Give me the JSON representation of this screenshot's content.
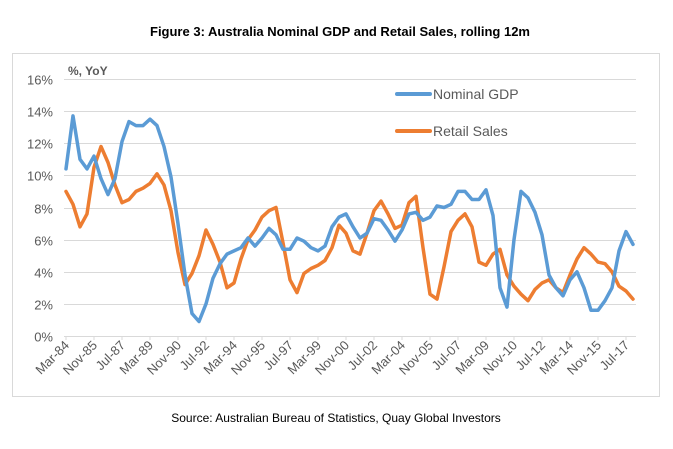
{
  "chart_data": {
    "type": "line",
    "title": "Figure 3: Australia Nominal GDP and Retail Sales, rolling 12m",
    "ylabel": "%, YoY",
    "xlabel": "",
    "source": "Source: Australian Bureau of Statistics, Quay Global Investors",
    "ylim": [
      0,
      16
    ],
    "y_ticks": [
      "0%",
      "2%",
      "4%",
      "6%",
      "8%",
      "10%",
      "12%",
      "14%",
      "16%"
    ],
    "x_ticks": [
      "Mar-84",
      "Nov-85",
      "Jul-87",
      "Mar-89",
      "Nov-90",
      "Jul-92",
      "Mar-94",
      "Nov-95",
      "Jul-97",
      "Mar-99",
      "Nov-00",
      "Jul-02",
      "Mar-04",
      "Nov-05",
      "Jul-07",
      "Mar-09",
      "Nov-10",
      "Jul-12",
      "Mar-14",
      "Nov-15",
      "Jul-17"
    ],
    "grid": "horizontal",
    "legend_position": "top-right",
    "x": [
      "1984-03",
      "1984-08",
      "1985-01",
      "1985-06",
      "1985-11",
      "1986-04",
      "1986-09",
      "1987-02",
      "1987-07",
      "1987-12",
      "1988-05",
      "1988-10",
      "1989-03",
      "1989-08",
      "1990-01",
      "1990-06",
      "1990-11",
      "1991-04",
      "1991-09",
      "1992-02",
      "1992-07",
      "1992-12",
      "1993-05",
      "1993-10",
      "1994-03",
      "1994-08",
      "1995-01",
      "1995-06",
      "1995-11",
      "1996-04",
      "1996-09",
      "1997-02",
      "1997-07",
      "1997-12",
      "1998-05",
      "1998-10",
      "1999-03",
      "1999-08",
      "2000-01",
      "2000-06",
      "2000-11",
      "2001-04",
      "2001-09",
      "2002-02",
      "2002-07",
      "2002-12",
      "2003-05",
      "2003-10",
      "2004-03",
      "2004-08",
      "2005-01",
      "2005-06",
      "2005-11",
      "2006-04",
      "2006-09",
      "2007-02",
      "2007-07",
      "2007-12",
      "2008-05",
      "2008-10",
      "2009-03",
      "2009-08",
      "2010-01",
      "2010-06",
      "2010-11",
      "2011-04",
      "2011-09",
      "2012-02",
      "2012-07",
      "2012-12",
      "2013-05",
      "2013-10",
      "2014-03",
      "2014-08",
      "2015-01",
      "2015-06",
      "2015-11",
      "2016-04",
      "2016-09",
      "2017-02",
      "2017-07",
      "2017-12"
    ],
    "series": [
      {
        "name": "Nominal GDP",
        "color": "#5B9BD5",
        "values": [
          10.4,
          13.7,
          11,
          10.4,
          11.2,
          9.8,
          8.8,
          9.8,
          12.1,
          13.35,
          13.1,
          13.1,
          13.5,
          13.1,
          11.8,
          9.9,
          7,
          3.8,
          1.4,
          0.9,
          2,
          3.6,
          4.5,
          5.1,
          5.3,
          5.5,
          6.1,
          5.6,
          6.1,
          6.7,
          6.3,
          5.4,
          5.4,
          6.1,
          5.9,
          5.5,
          5.3,
          5.6,
          6.8,
          7.4,
          7.6,
          6.8,
          6.1,
          6.4,
          7.3,
          7.2,
          6.6,
          5.9,
          6.6,
          7.6,
          7.7,
          7.2,
          7.4,
          8.1,
          8.0,
          8.2,
          9.0,
          9.0,
          8.5,
          8.5,
          9.1,
          7.5,
          3.0,
          1.8,
          6,
          9.0,
          8.6,
          7.7,
          6.3,
          3.8,
          3,
          2.5,
          3.5,
          4,
          3,
          1.6,
          1.6,
          2.2,
          3,
          5.3,
          6.5,
          5.7
        ]
      },
      {
        "name": "Retail Sales",
        "color": "#ED7D31",
        "values": [
          9,
          8.2,
          6.8,
          7.6,
          10.5,
          11.8,
          10.8,
          9.4,
          8.3,
          8.5,
          9,
          9.2,
          9.5,
          10.1,
          9.4,
          7.8,
          5.2,
          3.2,
          3.9,
          5,
          6.6,
          5.7,
          4.6,
          3,
          3.3,
          4.8,
          6,
          6.6,
          7.4,
          7.8,
          8,
          5.8,
          3.5,
          2.7,
          3.9,
          4.2,
          4.4,
          4.7,
          5.5,
          6.9,
          6.4,
          5.3,
          5.1,
          6.4,
          7.8,
          8.4,
          7.6,
          6.7,
          6.9,
          8.3,
          8.7,
          5.5,
          2.6,
          2.3,
          4.3,
          6.5,
          7.2,
          7.6,
          6.8,
          4.6,
          4.4,
          5.1,
          5.4,
          3.8,
          3.1,
          2.6,
          2.2,
          2.9,
          3.3,
          3.5,
          3,
          2.7,
          3.8,
          4.8,
          5.5,
          5.1,
          4.6,
          4.5,
          4,
          3.1,
          2.8,
          2.3
        ]
      }
    ]
  }
}
